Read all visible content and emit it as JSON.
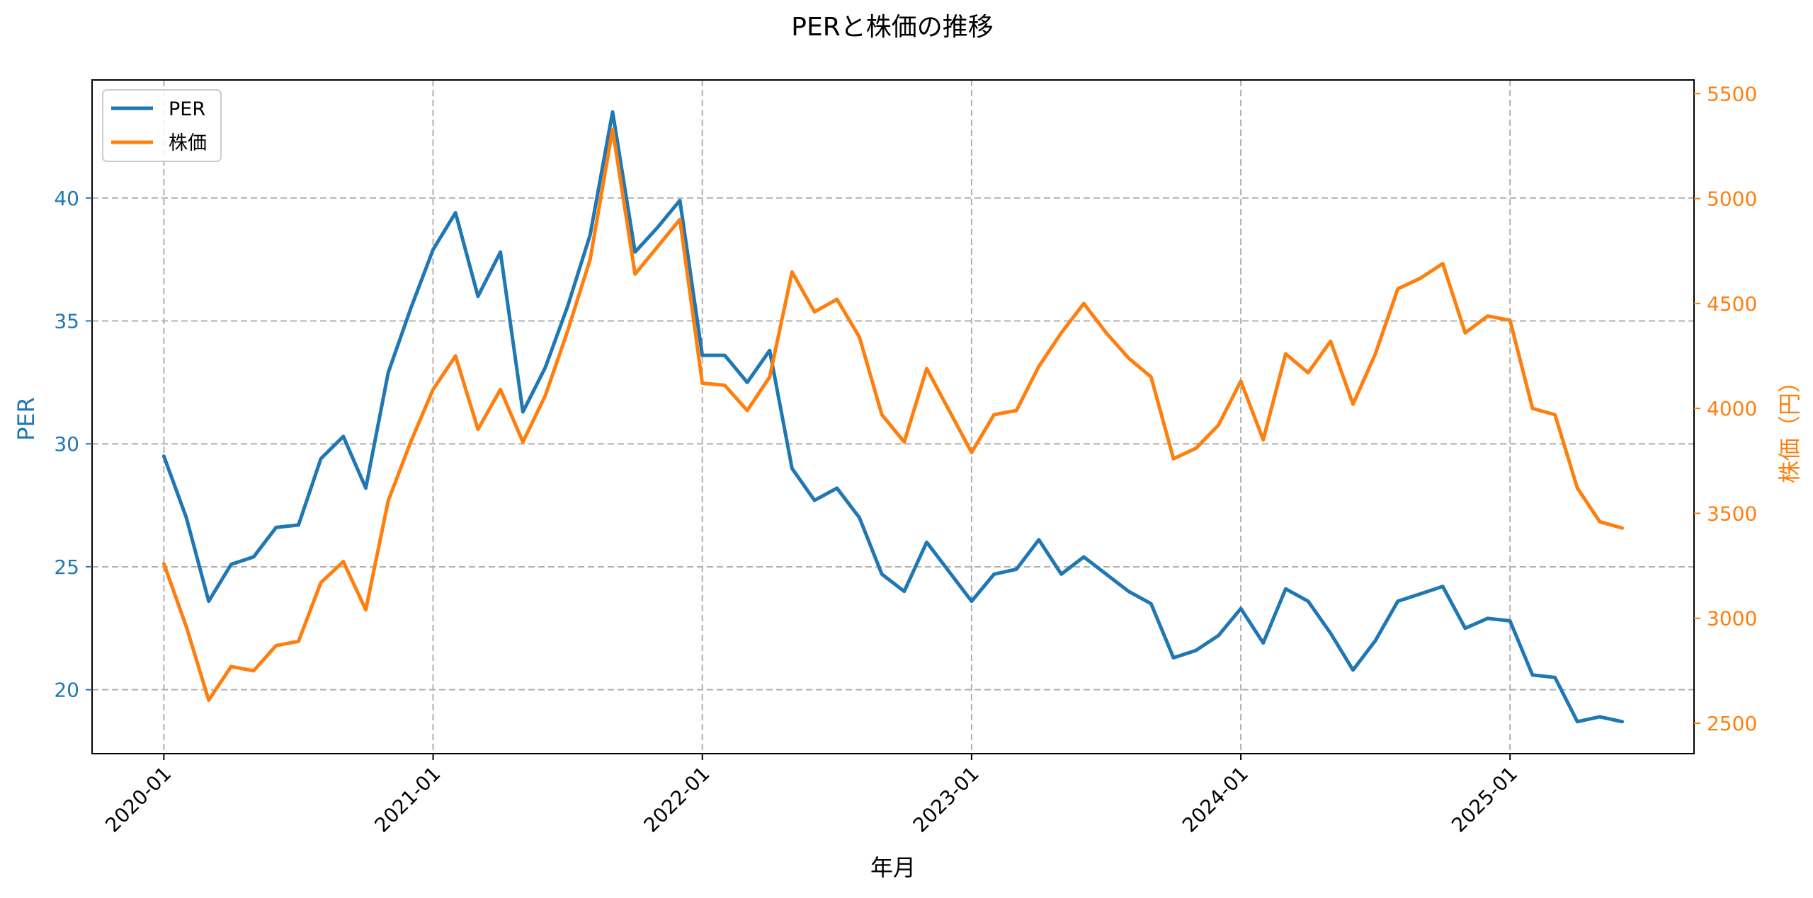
{
  "chart_data": {
    "type": "line",
    "title": "PERと株価の推移",
    "xlabel": "年月",
    "ylabel_left": "PER",
    "ylabel_right": "株価（円）",
    "x": [
      "2020-01",
      "2020-02",
      "2020-03",
      "2020-04",
      "2020-05",
      "2020-06",
      "2020-07",
      "2020-08",
      "2020-09",
      "2020-10",
      "2020-11",
      "2020-12",
      "2021-01",
      "2021-02",
      "2021-03",
      "2021-04",
      "2021-05",
      "2021-06",
      "2021-07",
      "2021-08",
      "2021-09",
      "2021-10",
      "2021-11",
      "2021-12",
      "2022-01",
      "2022-02",
      "2022-03",
      "2022-04",
      "2022-05",
      "2022-06",
      "2022-07",
      "2022-08",
      "2022-09",
      "2022-10",
      "2022-11",
      "2022-12",
      "2023-01",
      "2023-02",
      "2023-03",
      "2023-04",
      "2023-05",
      "2023-06",
      "2023-07",
      "2023-08",
      "2023-09",
      "2023-10",
      "2023-11",
      "2023-12",
      "2024-01",
      "2024-02",
      "2024-03",
      "2024-04",
      "2024-05",
      "2024-06",
      "2024-07",
      "2024-08",
      "2024-09",
      "2024-10",
      "2024-11",
      "2024-12",
      "2025-01",
      "2025-02",
      "2025-03",
      "2025-04",
      "2025-05",
      "2025-06"
    ],
    "x_ticks": [
      "2020-01",
      "2021-01",
      "2022-01",
      "2023-01",
      "2024-01",
      "2025-01"
    ],
    "xlim": [
      -3.2,
      68.2
    ],
    "ylim_left": [
      17.4,
      44.8
    ],
    "yticks_left": [
      20,
      25,
      30,
      35,
      40
    ],
    "ylim_right": [
      2355,
      5565
    ],
    "yticks_right": [
      2500,
      3000,
      3500,
      4000,
      4500,
      5000,
      5500
    ],
    "legend_position": "upper left",
    "grid": true,
    "series": [
      {
        "name": "PER",
        "axis": "left",
        "color": "#1f77b4",
        "values": [
          29.5,
          27.0,
          23.6,
          25.1,
          25.4,
          26.6,
          26.7,
          29.4,
          30.3,
          28.2,
          32.9,
          35.5,
          37.9,
          39.4,
          36.0,
          37.8,
          31.3,
          33.1,
          35.6,
          38.5,
          43.5,
          37.8,
          38.8,
          39.9,
          33.6,
          33.6,
          32.5,
          33.8,
          29.0,
          27.7,
          28.2,
          27.0,
          24.7,
          24.0,
          26.0,
          24.8,
          23.6,
          24.7,
          24.9,
          26.1,
          24.7,
          25.4,
          24.7,
          24.0,
          23.5,
          21.3,
          21.6,
          22.2,
          23.3,
          21.9,
          24.1,
          23.6,
          22.3,
          20.8,
          22.0,
          23.6,
          23.9,
          24.2,
          22.5,
          22.9,
          22.8,
          20.6,
          20.5,
          18.7,
          18.9,
          18.7
        ]
      },
      {
        "name": "株価",
        "axis": "right",
        "color": "#ff7f0e",
        "values": [
          3260,
          2960,
          2610,
          2770,
          2750,
          2870,
          2890,
          3170,
          3270,
          3040,
          3560,
          3840,
          4090,
          4250,
          3900,
          4090,
          3840,
          4060,
          4370,
          4710,
          5330,
          4640,
          4770,
          4900,
          4120,
          4110,
          3990,
          4150,
          4650,
          4460,
          4520,
          4340,
          3970,
          3840,
          4190,
          3990,
          3790,
          3970,
          3990,
          4200,
          4360,
          4500,
          4360,
          4240,
          4150,
          3760,
          3810,
          3920,
          4130,
          3850,
          4260,
          4170,
          4320,
          4020,
          4260,
          4570,
          4620,
          4690,
          4360,
          4440,
          4420,
          4000,
          3970,
          3620,
          3460,
          3430
        ]
      }
    ]
  }
}
